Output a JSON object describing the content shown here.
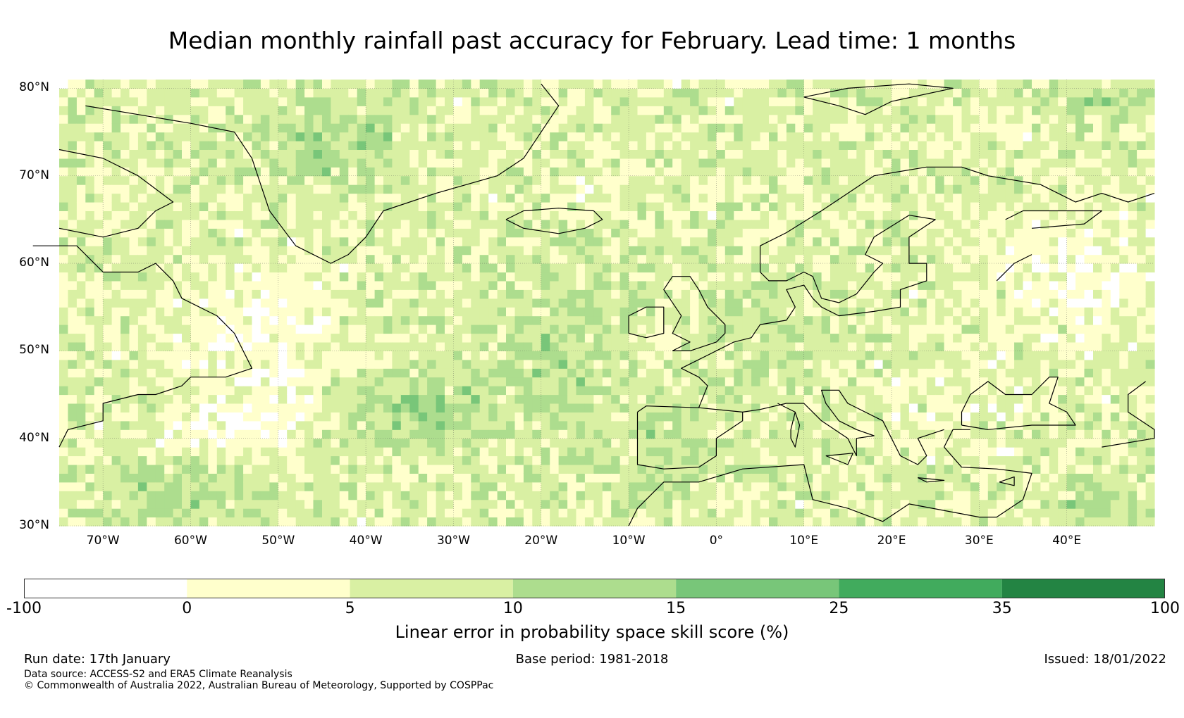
{
  "title": "Median monthly rainfall past accuracy for February. Lead time: 1 months",
  "map": {
    "region": "North Atlantic and Europe",
    "lat_range": [
      30,
      81
    ],
    "lon_range": [
      -75,
      50
    ],
    "lat_labels": [
      "80°N",
      "70°N",
      "60°N",
      "50°N",
      "40°N",
      "30°N"
    ],
    "lon_labels": [
      "70°W",
      "60°W",
      "50°W",
      "40°W",
      "30°W",
      "20°W",
      "10°W",
      "0°",
      "10°E",
      "20°E",
      "30°E",
      "40°E"
    ]
  },
  "colorbar": {
    "bounds": [
      "-100",
      "0",
      "5",
      "10",
      "15",
      "25",
      "35",
      "100"
    ],
    "colors": [
      "#ffffff",
      "#ffffcc",
      "#d9f0a3",
      "#addd8e",
      "#78c679",
      "#41ab5d",
      "#238443"
    ],
    "label": "Linear error in probability space skill score (%)"
  },
  "footer": {
    "run_date": "Run date: 17th January",
    "base_period": "Base period: 1981-2018",
    "issued": "Issued: 18/01/2022",
    "data_source": "Data source: ACCESS-S2 and ERA5 Climate Reanalysis",
    "copyright": "© Commonwealth of Australia 2022, Australian Bureau of Meteorology, Supported by COSPPac"
  }
}
